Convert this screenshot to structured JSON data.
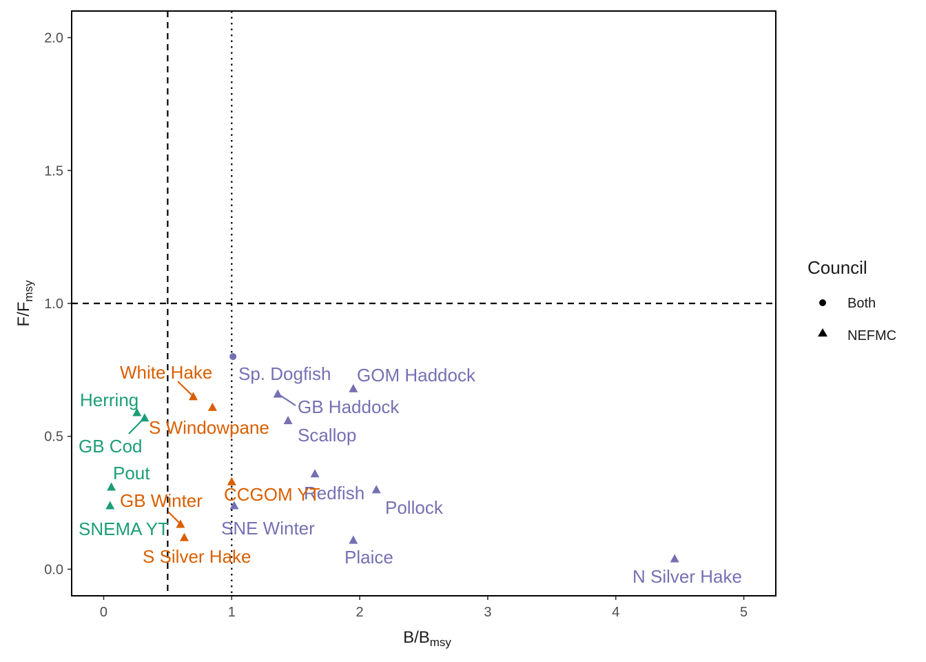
{
  "chart_data": {
    "type": "scatter",
    "xlabel_main": "B/B",
    "xlabel_sub": "msy",
    "ylabel_main": "F/F",
    "ylabel_sub": "msy",
    "xlim": [
      -0.25,
      5.25
    ],
    "ylim": [
      -0.1,
      2.1
    ],
    "x_ticks": [
      0,
      1,
      2,
      3,
      4,
      5
    ],
    "x_tick_labels": [
      "0",
      "1",
      "2",
      "3",
      "4",
      "5"
    ],
    "y_ticks": [
      0.0,
      0.5,
      1.0,
      1.5,
      2.0
    ],
    "y_tick_labels": [
      "0.0",
      "0.5",
      "1.0",
      "1.5",
      "2.0"
    ],
    "reference_lines": [
      {
        "orientation": "vertical",
        "value": 0.5,
        "style": "dashed"
      },
      {
        "orientation": "vertical",
        "value": 1.0,
        "style": "dotted"
      },
      {
        "orientation": "horizontal",
        "value": 1.0,
        "style": "dashed"
      }
    ],
    "legend": {
      "title": "Council",
      "position": "right",
      "items": [
        {
          "label": "Both",
          "shape": "circle"
        },
        {
          "label": "NEFMC",
          "shape": "triangle"
        }
      ]
    },
    "colors": {
      "green": "#1b9e77",
      "orange": "#d95f02",
      "purple": "#7570b3"
    },
    "points": [
      {
        "label": "Sp. Dogfish",
        "x": 1.01,
        "y": 0.8,
        "shape": "circle",
        "color": "purple"
      },
      {
        "label": "GOM Haddock",
        "x": 1.95,
        "y": 0.68,
        "shape": "triangle",
        "color": "purple"
      },
      {
        "label": "GB Haddock",
        "x": 1.36,
        "y": 0.66,
        "shape": "triangle",
        "color": "purple"
      },
      {
        "label": "Scallop",
        "x": 1.44,
        "y": 0.56,
        "shape": "triangle",
        "color": "purple"
      },
      {
        "label": "Redfish",
        "x": 1.65,
        "y": 0.36,
        "shape": "triangle",
        "color": "purple"
      },
      {
        "label": "Pollock",
        "x": 2.13,
        "y": 0.3,
        "shape": "triangle",
        "color": "purple"
      },
      {
        "label": "SNE Winter",
        "x": 1.02,
        "y": 0.24,
        "shape": "triangle",
        "color": "purple"
      },
      {
        "label": "Plaice",
        "x": 1.95,
        "y": 0.11,
        "shape": "triangle",
        "color": "purple"
      },
      {
        "label": "N Silver Hake",
        "x": 4.46,
        "y": 0.04,
        "shape": "triangle",
        "color": "purple"
      },
      {
        "label": "White Hake",
        "x": 0.7,
        "y": 0.65,
        "shape": "triangle",
        "color": "orange"
      },
      {
        "label": "S Windowpane",
        "x": 0.85,
        "y": 0.61,
        "shape": "triangle",
        "color": "orange"
      },
      {
        "label": "CCGOM YT",
        "x": 1.0,
        "y": 0.33,
        "shape": "triangle",
        "color": "orange"
      },
      {
        "label": "GB Winter",
        "x": 0.6,
        "y": 0.17,
        "shape": "triangle",
        "color": "orange"
      },
      {
        "label": "S Silver Hake",
        "x": 0.63,
        "y": 0.12,
        "shape": "triangle",
        "color": "orange"
      },
      {
        "label": "Herring",
        "x": 0.26,
        "y": 0.59,
        "shape": "triangle",
        "color": "green"
      },
      {
        "label": "GB Cod",
        "x": 0.32,
        "y": 0.57,
        "shape": "triangle",
        "color": "green"
      },
      {
        "label": "Pout",
        "x": 0.06,
        "y": 0.31,
        "shape": "triangle",
        "color": "green"
      },
      {
        "label": "SNEMA YT",
        "x": 0.05,
        "y": 0.24,
        "shape": "triangle",
        "color": "green"
      }
    ]
  }
}
